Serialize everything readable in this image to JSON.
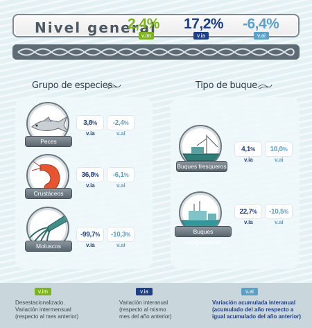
{
  "header": {
    "title": "Nivel general",
    "vim_value": "2,4%",
    "vim_label": "v.im",
    "via_value": "17,2%",
    "via_label": "v.ia",
    "vai_value": "-6,4%",
    "vai_label": "v.ai"
  },
  "colors": {
    "vim": "#7cb518",
    "via": "#1c3f8a",
    "vai": "#5aa0c8",
    "plaque": "#6b7780"
  },
  "species": {
    "title": "Grupo de especies",
    "items": [
      {
        "label": "Peces",
        "via": "3,8",
        "vai": "-2,4",
        "via_label": "v.ia",
        "vai_label": "v.ai",
        "icon": "fish-icon"
      },
      {
        "label": "Crustáceos",
        "via": "36,8",
        "vai": "-6,1",
        "via_label": "v.ia",
        "vai_label": "v.ai",
        "icon": "shrimp-icon"
      },
      {
        "label": "Moluscos",
        "via": "-99,7",
        "vai": "-10,3",
        "via_label": "v.ia",
        "vai_label": "v.ai",
        "icon": "squid-icon"
      }
    ]
  },
  "vessel": {
    "title": "Tipo de buque",
    "items": [
      {
        "label": "Buques fresqueros",
        "via": "4,1",
        "vai": "10,0",
        "via_label": "v.ia",
        "vai_label": "v.ai",
        "icon": "trawler-icon"
      },
      {
        "label": "Buques congeladores",
        "via": "22,7",
        "vai": "-10,5",
        "via_label": "v.ia",
        "vai_label": "v.ai",
        "icon": "freezer-ship-icon"
      }
    ]
  },
  "pct_sign": "%",
  "legend": {
    "vim": {
      "badge": "v.im",
      "line1": "Desestacionalizado.",
      "line2": "Variación intermensual",
      "line3": "(respecto al mes anterior)"
    },
    "via": {
      "badge": "v.ia",
      "line1": "Variación interanual",
      "line2": "(respecto al mismo",
      "line3": "mes del año anterior)"
    },
    "vai": {
      "badge": "v.ai",
      "line1": "Variación acumulada interanual",
      "line2": "(acumulado del año respecto a",
      "line3": "igual acumulado del año anterior)"
    }
  }
}
